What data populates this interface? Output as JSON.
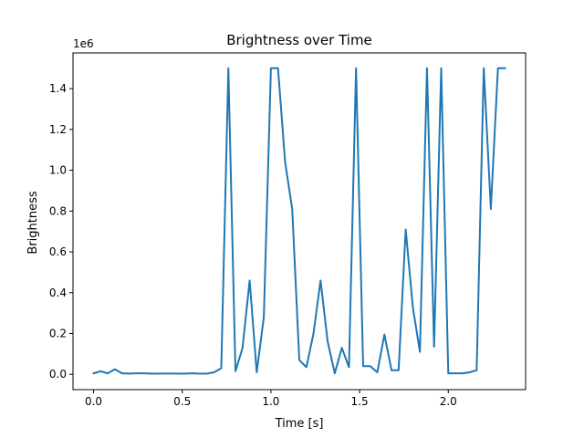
{
  "chart_data": {
    "type": "line",
    "title": "Brightness over Time",
    "xlabel": "Time [s]",
    "ylabel": "Brightness",
    "y_offset_label": "1e6",
    "xlim": [
      -0.116,
      2.436
    ],
    "ylim": [
      -75000,
      1575000
    ],
    "x_ticks": [
      0.0,
      0.5,
      1.0,
      1.5,
      2.0
    ],
    "x_tick_labels": [
      "0.0",
      "0.5",
      "1.0",
      "1.5",
      "2.0"
    ],
    "y_ticks": [
      0,
      200000,
      400000,
      600000,
      800000,
      1000000,
      1200000,
      1400000
    ],
    "y_tick_labels": [
      "0.0",
      "0.2",
      "0.4",
      "0.6",
      "0.8",
      "1.0",
      "1.2",
      "1.4"
    ],
    "grid": false,
    "color": "#1f77b4",
    "series": [
      {
        "x": [
          0.0,
          0.04,
          0.08,
          0.12,
          0.16,
          0.2,
          0.24,
          0.28,
          0.32,
          0.36,
          0.4,
          0.44,
          0.48,
          0.52,
          0.56,
          0.6,
          0.64,
          0.68,
          0.72,
          0.76,
          0.8,
          0.84,
          0.88,
          0.92,
          0.96,
          1.0,
          1.04,
          1.08,
          1.12,
          1.16,
          1.2,
          1.24,
          1.28,
          1.32,
          1.36,
          1.4,
          1.44,
          1.48,
          1.52,
          1.56,
          1.6,
          1.64,
          1.68,
          1.72,
          1.76,
          1.8,
          1.84,
          1.88,
          1.92,
          1.96,
          2.0,
          2.04,
          2.08,
          2.12,
          2.16,
          2.2,
          2.24,
          2.28,
          2.32
        ],
        "y": [
          5000,
          15000,
          5000,
          25000,
          5000,
          4000,
          5000,
          5000,
          4000,
          3000,
          4000,
          4000,
          3000,
          4000,
          5000,
          3000,
          4000,
          10000,
          30000,
          1500000,
          15000,
          130000,
          460000,
          10000,
          280000,
          1500000,
          1500000,
          1040000,
          810000,
          70000,
          35000,
          200000,
          460000,
          160000,
          5000,
          130000,
          35000,
          1500000,
          40000,
          40000,
          10000,
          195000,
          20000,
          20000,
          710000,
          330000,
          110000,
          1500000,
          135000,
          1500000,
          5000,
          5000,
          5000,
          10000,
          20000,
          1500000,
          810000,
          1500000,
          1500000
        ]
      }
    ]
  }
}
